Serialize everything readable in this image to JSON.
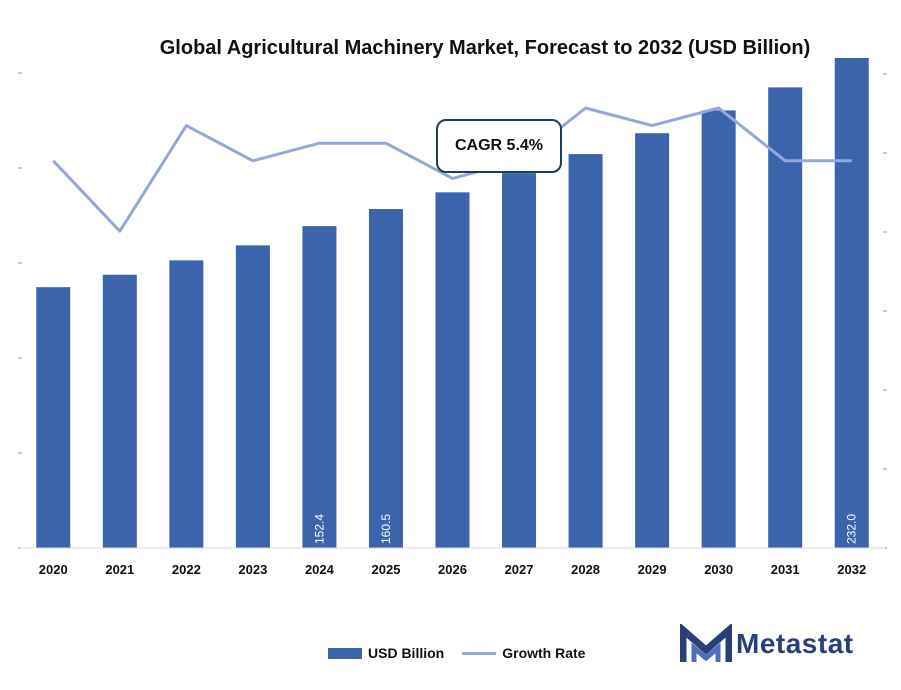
{
  "chart_data": {
    "type": "bar",
    "title": "Global Agricultural Machinery Market, Forecast to 2032 (USD Billion)",
    "categories": [
      "2020",
      "2021",
      "2022",
      "2023",
      "2024",
      "2025",
      "2026",
      "2027",
      "2028",
      "2029",
      "2030",
      "2031",
      "2032"
    ],
    "series": [
      {
        "name": "USD Billion",
        "type": "bar",
        "values": [
          123.5,
          129.4,
          136.2,
          143.3,
          152.4,
          160.5,
          168.4,
          177.5,
          186.5,
          196.4,
          207.2,
          218.1,
          232.0
        ],
        "data_labels": {
          "4": "152.4",
          "5": "160.5",
          "12": "232.0"
        }
      },
      {
        "name": "Growth Rate",
        "type": "line",
        "values": [
          5.2,
          4.8,
          5.4,
          5.2,
          5.3,
          5.3,
          5.1,
          5.2,
          5.5,
          5.4,
          5.5,
          5.2,
          5.2
        ]
      }
    ],
    "ylim": [
      0,
      250
    ],
    "y2lim": [
      3.0,
      6.0
    ],
    "legend_position": "bottom",
    "grid": false,
    "annotation": "CAGR 5.4%",
    "colors": {
      "bar": "#3c64ad",
      "line": "#94a8dc"
    }
  },
  "brand": {
    "name": "Metastat",
    "color": "#2a3f7a",
    "icon": "metastat-m-logo-icon"
  }
}
